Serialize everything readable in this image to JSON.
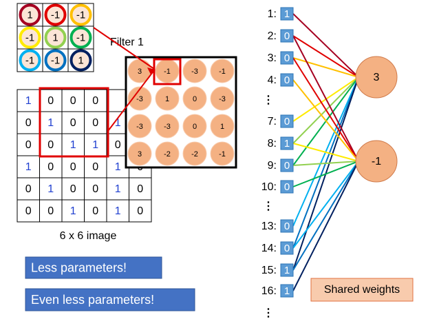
{
  "filter": {
    "label": "Filter 1",
    "cells": [
      [
        1,
        -1,
        -1
      ],
      [
        -1,
        1,
        -1
      ],
      [
        -1,
        -1,
        1
      ]
    ]
  },
  "image": {
    "label": "6 x 6 image",
    "rows": [
      [
        1,
        0,
        0,
        0,
        null,
        null
      ],
      [
        0,
        1,
        0,
        0,
        1,
        null
      ],
      [
        0,
        0,
        1,
        1,
        0,
        null
      ],
      [
        1,
        0,
        0,
        0,
        1,
        0
      ],
      [
        0,
        1,
        0,
        0,
        1,
        0
      ],
      [
        0,
        0,
        1,
        0,
        1,
        0
      ]
    ]
  },
  "feature_map": [
    [
      3,
      -1,
      -3,
      -1
    ],
    [
      -3,
      1,
      0,
      -3
    ],
    [
      -3,
      -3,
      0,
      1
    ],
    [
      3,
      -2,
      -2,
      -1
    ]
  ],
  "buttons": [
    "Less parameters!",
    "Even less parameters!"
  ],
  "inputs": [
    {
      "label": "1:",
      "value": 1
    },
    {
      "label": "2:",
      "value": 0
    },
    {
      "label": "3:",
      "value": 0
    },
    {
      "label": "4:",
      "value": 0
    },
    {
      "label": "⋮"
    },
    {
      "label": "7:",
      "value": 0
    },
    {
      "label": "8:",
      "value": 1
    },
    {
      "label": "9:",
      "value": 0
    },
    {
      "label": "10:",
      "value": 0
    },
    {
      "label": "⋮"
    },
    {
      "label": "13:",
      "value": 0
    },
    {
      "label": "14:",
      "value": 0
    },
    {
      "label": "15:",
      "value": 1
    },
    {
      "label": "16:",
      "value": 1
    },
    {
      "label": "⋮"
    }
  ],
  "outputs": [
    3,
    -1
  ],
  "shared_label": "Shared weights"
}
